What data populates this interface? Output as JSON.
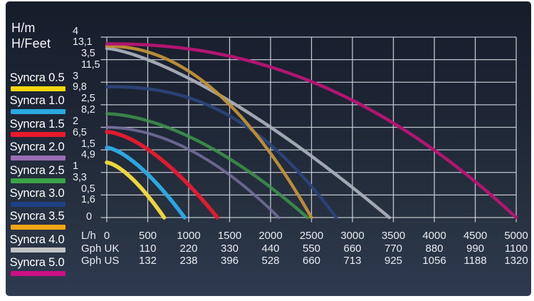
{
  "axes": {
    "y_title_m": "H/m",
    "y_title_feet": "H/Feet",
    "y_ticks": [
      {
        "m": "4",
        "ft": "13,1",
        "indent": 0
      },
      {
        "m": "3,5",
        "ft": "11,5",
        "indent": 1
      },
      {
        "m": "3",
        "ft": "9,8",
        "indent": 0
      },
      {
        "m": "2,5",
        "ft": "8,2",
        "indent": 1
      },
      {
        "m": "2",
        "ft": "6,5",
        "indent": 0
      },
      {
        "m": "1,5",
        "ft": "4,9",
        "indent": 1
      },
      {
        "m": "1",
        "ft": "3,3",
        "indent": 0
      },
      {
        "m": "0,5",
        "ft": "1,6",
        "indent": 1
      },
      {
        "m": "0",
        "ft": "",
        "indent": 2
      }
    ],
    "x_rows": [
      {
        "label": "L/h",
        "values": [
          "0",
          "500",
          "1000",
          "1500",
          "2000",
          "2500",
          "3000",
          "3500",
          "4000",
          "4500",
          "5000"
        ]
      },
      {
        "label": "Gph UK",
        "values": [
          "",
          "110",
          "220",
          "330",
          "440",
          "550",
          "660",
          "770",
          "880",
          "990",
          "1100"
        ]
      },
      {
        "label": "Gph US",
        "values": [
          "",
          "132",
          "238",
          "396",
          "528",
          "660",
          "713",
          "925",
          "1056",
          "1188",
          "1320"
        ]
      }
    ]
  },
  "legend": [
    {
      "label": "Syncra 0.5",
      "color": "#f3d60e"
    },
    {
      "label": "Syncra 1.0",
      "color": "#2aa9e1"
    },
    {
      "label": "Syncra 1.5",
      "color": "#e81a2c"
    },
    {
      "label": "Syncra 2.0",
      "color": "#9a6cb6"
    },
    {
      "label": "Syncra 2.5",
      "color": "#3aa347"
    },
    {
      "label": "Syncra 3.0",
      "color": "#1c4284"
    },
    {
      "label": "Syncra 3.5",
      "color": "#f4a516"
    },
    {
      "label": "Syncra 4.0",
      "color": "#c0c2c6"
    },
    {
      "label": "Syncra 5.0",
      "color": "#c90f85"
    }
  ],
  "chart_data": {
    "type": "line",
    "title": "Syncra pump performance curves (head vs flow)",
    "xlabel": "L/h",
    "ylabel": "H/m",
    "x_range": [
      0,
      5000
    ],
    "x_tick_step": 500,
    "y_range": [
      0,
      4
    ],
    "y_tick_step": 0.5,
    "grid": true,
    "legend_position": "left",
    "series": [
      {
        "name": "Syncra 0.5",
        "color": "#edd63d",
        "opacity": 1,
        "stroke_width": 5.5,
        "hmax_m": 1.22,
        "qmax_lh": 700,
        "exponent": 1.5,
        "points": [
          [
            0,
            1.22
          ],
          [
            70,
            1.18
          ],
          [
            140,
            1.11
          ],
          [
            210,
            1.02
          ],
          [
            280,
            0.91
          ],
          [
            350,
            0.79
          ],
          [
            420,
            0.65
          ],
          [
            490,
            0.51
          ],
          [
            560,
            0.35
          ],
          [
            630,
            0.18
          ],
          [
            700,
            0
          ]
        ]
      },
      {
        "name": "Syncra 1.0",
        "color": "#2ca6de",
        "opacity": 1,
        "stroke_width": 5.5,
        "hmax_m": 1.55,
        "qmax_lh": 950,
        "exponent": 1.5,
        "points": [
          [
            0,
            1.55
          ],
          [
            95,
            1.5
          ],
          [
            190,
            1.41
          ],
          [
            285,
            1.3
          ],
          [
            380,
            1.16
          ],
          [
            475,
            1.0
          ],
          [
            570,
            0.83
          ],
          [
            665,
            0.64
          ],
          [
            760,
            0.44
          ],
          [
            855,
            0.23
          ],
          [
            950,
            0
          ]
        ]
      },
      {
        "name": "Syncra 1.5",
        "color": "#de1b2f",
        "opacity": 1,
        "stroke_width": 5.5,
        "hmax_m": 1.9,
        "qmax_lh": 1350,
        "exponent": 1.6,
        "points": [
          [
            0,
            1.9
          ],
          [
            135,
            1.85
          ],
          [
            270,
            1.76
          ],
          [
            405,
            1.62
          ],
          [
            540,
            1.46
          ],
          [
            675,
            1.27
          ],
          [
            810,
            1.06
          ],
          [
            945,
            0.83
          ],
          [
            1080,
            0.57
          ],
          [
            1215,
            0.29
          ],
          [
            1350,
            0
          ]
        ]
      },
      {
        "name": "Syncra 2.0",
        "color": "#776f9e",
        "opacity": 0.85,
        "stroke_width": 4,
        "hmax_m": 2.0,
        "qmax_lh": 2100,
        "exponent": 1.9,
        "points": [
          [
            0,
            2.0
          ],
          [
            210,
            1.97
          ],
          [
            420,
            1.91
          ],
          [
            630,
            1.8
          ],
          [
            840,
            1.65
          ],
          [
            1050,
            1.46
          ],
          [
            1260,
            1.24
          ],
          [
            1470,
            0.98
          ],
          [
            1680,
            0.69
          ],
          [
            1890,
            0.36
          ],
          [
            2100,
            0
          ]
        ]
      },
      {
        "name": "Syncra 2.5",
        "color": "#3e944b",
        "opacity": 0.85,
        "stroke_width": 4.5,
        "hmax_m": 2.3,
        "qmax_lh": 2450,
        "exponent": 1.7,
        "points": [
          [
            0,
            2.3
          ],
          [
            245,
            2.25
          ],
          [
            490,
            2.15
          ],
          [
            735,
            2.0
          ],
          [
            980,
            1.82
          ],
          [
            1225,
            1.59
          ],
          [
            1470,
            1.33
          ],
          [
            1715,
            1.05
          ],
          [
            1960,
            0.73
          ],
          [
            2205,
            0.38
          ],
          [
            2450,
            0
          ]
        ]
      },
      {
        "name": "Syncra 3.0",
        "color": "#2b4377",
        "opacity": 0.95,
        "stroke_width": 4.5,
        "hmax_m": 2.9,
        "qmax_lh": 2800,
        "exponent": 2.4,
        "points": [
          [
            0,
            2.9
          ],
          [
            280,
            2.89
          ],
          [
            560,
            2.84
          ],
          [
            840,
            2.74
          ],
          [
            1120,
            2.58
          ],
          [
            1400,
            2.35
          ],
          [
            1680,
            2.05
          ],
          [
            1960,
            1.67
          ],
          [
            2240,
            1.2
          ],
          [
            2520,
            0.65
          ],
          [
            2800,
            0
          ]
        ]
      },
      {
        "name": "Syncra 3.5",
        "color": "#c29135",
        "opacity": 0.95,
        "stroke_width": 4.5,
        "hmax_m": 3.8,
        "qmax_lh": 2500,
        "exponent": 2.1,
        "points": [
          [
            0,
            3.8
          ],
          [
            250,
            3.77
          ],
          [
            500,
            3.67
          ],
          [
            750,
            3.5
          ],
          [
            1000,
            3.25
          ],
          [
            1250,
            2.91
          ],
          [
            1500,
            2.5
          ],
          [
            1750,
            2.0
          ],
          [
            2000,
            1.42
          ],
          [
            2250,
            0.75
          ],
          [
            2500,
            0
          ]
        ]
      },
      {
        "name": "Syncra 4.0",
        "color": "#a9aeb8",
        "opacity": 0.95,
        "stroke_width": 4.5,
        "hmax_m": 3.75,
        "qmax_lh": 3450,
        "exponent": 1.4,
        "points": [
          [
            0,
            3.75
          ],
          [
            345,
            3.6
          ],
          [
            690,
            3.36
          ],
          [
            1035,
            3.06
          ],
          [
            1380,
            2.71
          ],
          [
            1725,
            2.33
          ],
          [
            2070,
            1.91
          ],
          [
            2415,
            1.47
          ],
          [
            2760,
            1.01
          ],
          [
            3105,
            0.51
          ],
          [
            3450,
            0
          ]
        ]
      },
      {
        "name": "Syncra 5.0",
        "color": "#b2156f",
        "opacity": 1,
        "stroke_width": 4.5,
        "hmax_m": 3.85,
        "qmax_lh": 5000,
        "exponent": 2.2,
        "points": [
          [
            0,
            3.85
          ],
          [
            500,
            3.83
          ],
          [
            1000,
            3.74
          ],
          [
            1500,
            3.58
          ],
          [
            2000,
            3.34
          ],
          [
            2500,
            3.01
          ],
          [
            3000,
            2.6
          ],
          [
            3500,
            2.09
          ],
          [
            4000,
            1.49
          ],
          [
            4500,
            0.8
          ],
          [
            5000,
            0
          ]
        ]
      }
    ]
  }
}
